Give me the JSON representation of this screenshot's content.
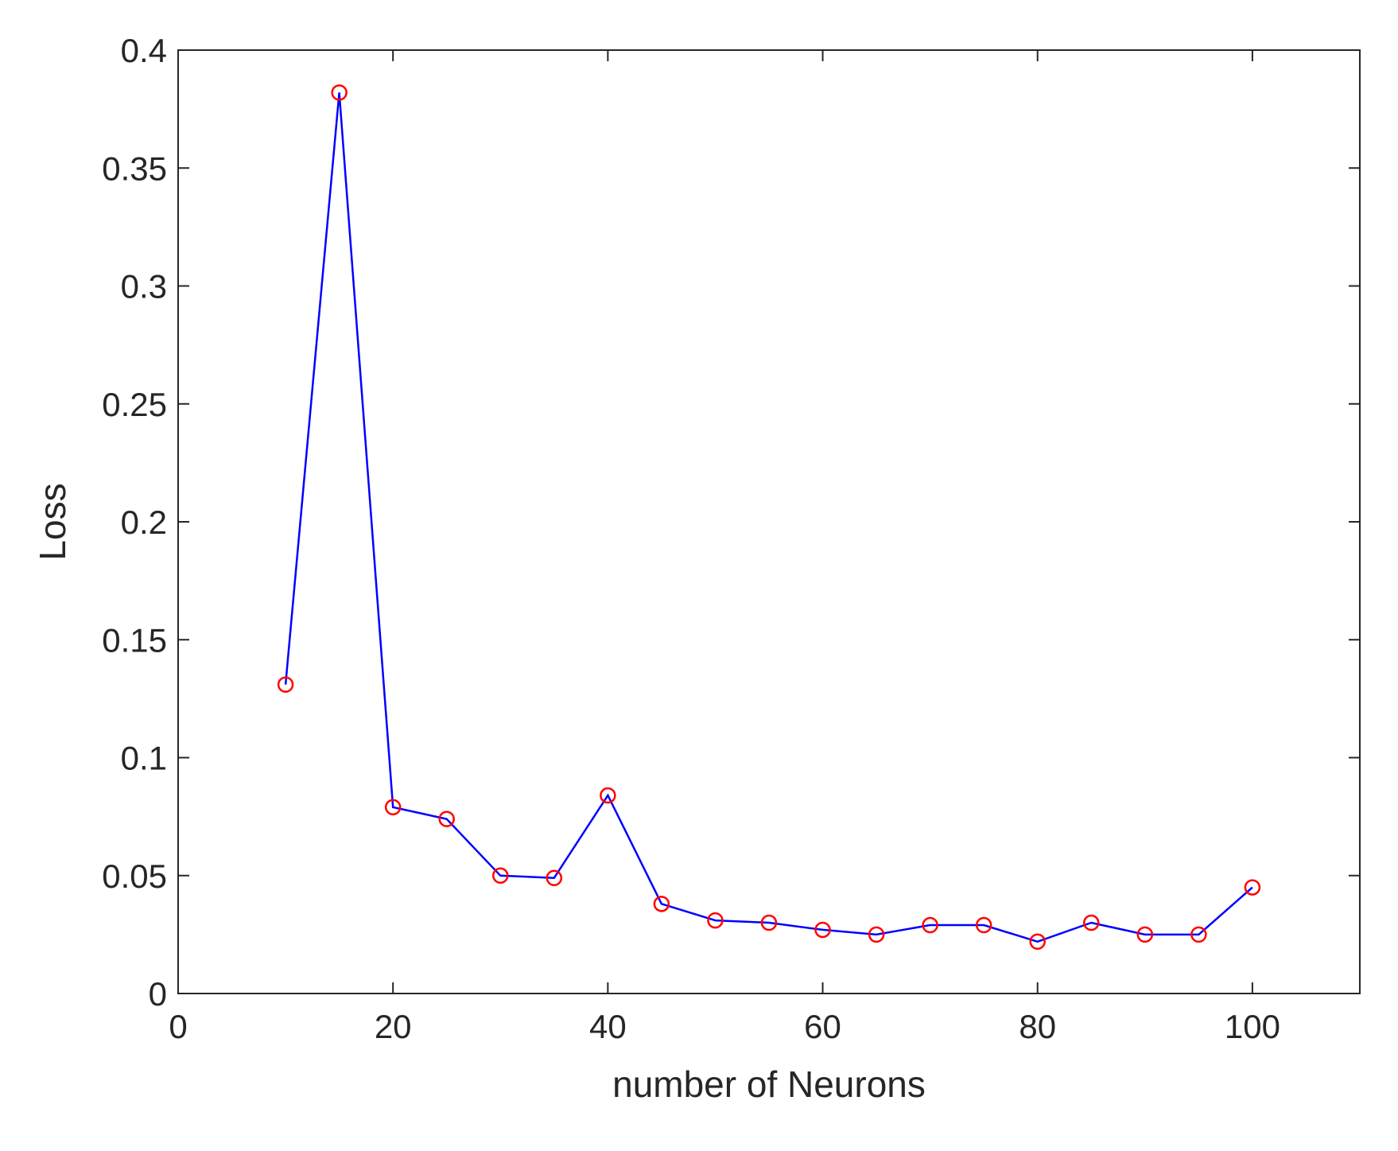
{
  "chart_data": {
    "type": "line",
    "title": "",
    "xlabel": "number of Neurons",
    "ylabel": "Loss",
    "xlim": [
      0,
      110
    ],
    "ylim": [
      0,
      0.4
    ],
    "xticks": [
      0,
      20,
      40,
      60,
      80,
      100
    ],
    "yticks": [
      0,
      0.05,
      0.1,
      0.15,
      0.2,
      0.25,
      0.3,
      0.35,
      0.4
    ],
    "grid": false,
    "line_color": "#0000ff",
    "marker_color": "#ff0000",
    "marker": "circle",
    "series": [
      {
        "x": [
          10,
          15,
          20,
          25,
          30,
          35,
          40,
          45,
          50,
          55,
          60,
          65,
          70,
          75,
          80,
          85,
          90,
          95,
          100
        ],
        "y": [
          0.131,
          0.382,
          0.079,
          0.074,
          0.05,
          0.049,
          0.084,
          0.038,
          0.031,
          0.03,
          0.027,
          0.025,
          0.029,
          0.029,
          0.022,
          0.03,
          0.025,
          0.025,
          0.045
        ]
      }
    ]
  }
}
